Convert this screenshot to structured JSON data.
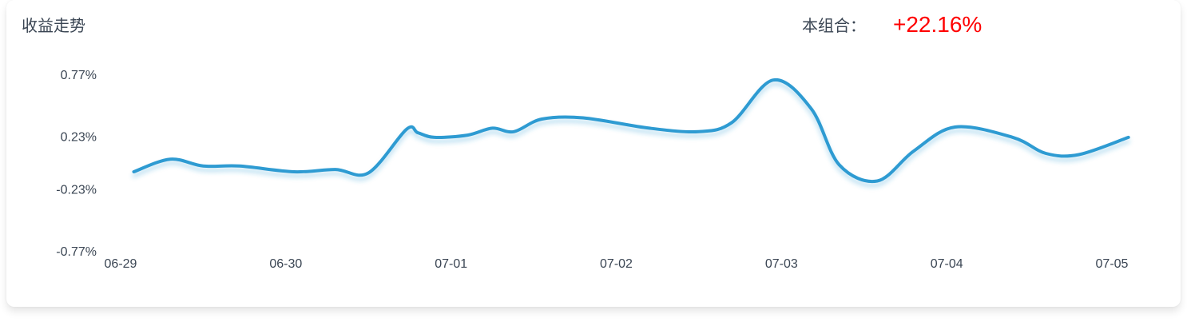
{
  "header": {
    "title": "收益走势",
    "summary_label": "本组合：",
    "summary_value": "+22.16%"
  },
  "colors": {
    "line": "#2e9bd2",
    "value_positive": "#ff0000",
    "text": "#3a4553"
  },
  "chart_data": {
    "type": "line",
    "title": "收益走势",
    "xlabel": "",
    "ylabel": "",
    "grid": false,
    "legend": "none",
    "x_tick_labels": [
      "06-29",
      "06-30",
      "07-01",
      "07-02",
      "07-03",
      "07-04",
      "07-05"
    ],
    "y_tick_labels": [
      "0.77%",
      "0.23%",
      "-0.23%",
      "-0.77%"
    ],
    "y_tick_values": [
      0.77,
      0.23,
      -0.23,
      -0.77
    ],
    "ylim": [
      -0.77,
      0.77
    ],
    "xlim": [
      0,
      6
    ],
    "series": [
      {
        "values": [
          {
            "x": 0.08,
            "y": -0.08
          },
          {
            "x": 0.3,
            "y": 0.03
          },
          {
            "x": 0.5,
            "y": -0.03
          },
          {
            "x": 0.72,
            "y": -0.03
          },
          {
            "x": 1.05,
            "y": -0.08
          },
          {
            "x": 1.3,
            "y": -0.06
          },
          {
            "x": 1.5,
            "y": -0.09
          },
          {
            "x": 1.73,
            "y": 0.29
          },
          {
            "x": 1.8,
            "y": 0.26
          },
          {
            "x": 1.9,
            "y": 0.22
          },
          {
            "x": 2.1,
            "y": 0.24
          },
          {
            "x": 2.25,
            "y": 0.3
          },
          {
            "x": 2.38,
            "y": 0.27
          },
          {
            "x": 2.55,
            "y": 0.38
          },
          {
            "x": 2.8,
            "y": 0.39
          },
          {
            "x": 3.2,
            "y": 0.3
          },
          {
            "x": 3.5,
            "y": 0.27
          },
          {
            "x": 3.7,
            "y": 0.35
          },
          {
            "x": 3.95,
            "y": 0.72
          },
          {
            "x": 4.18,
            "y": 0.47
          },
          {
            "x": 4.35,
            "y": -0.02
          },
          {
            "x": 4.58,
            "y": -0.16
          },
          {
            "x": 4.8,
            "y": 0.1
          },
          {
            "x": 5.05,
            "y": 0.31
          },
          {
            "x": 5.4,
            "y": 0.22
          },
          {
            "x": 5.6,
            "y": 0.08
          },
          {
            "x": 5.8,
            "y": 0.07
          },
          {
            "x": 6.1,
            "y": 0.22
          }
        ]
      }
    ]
  }
}
